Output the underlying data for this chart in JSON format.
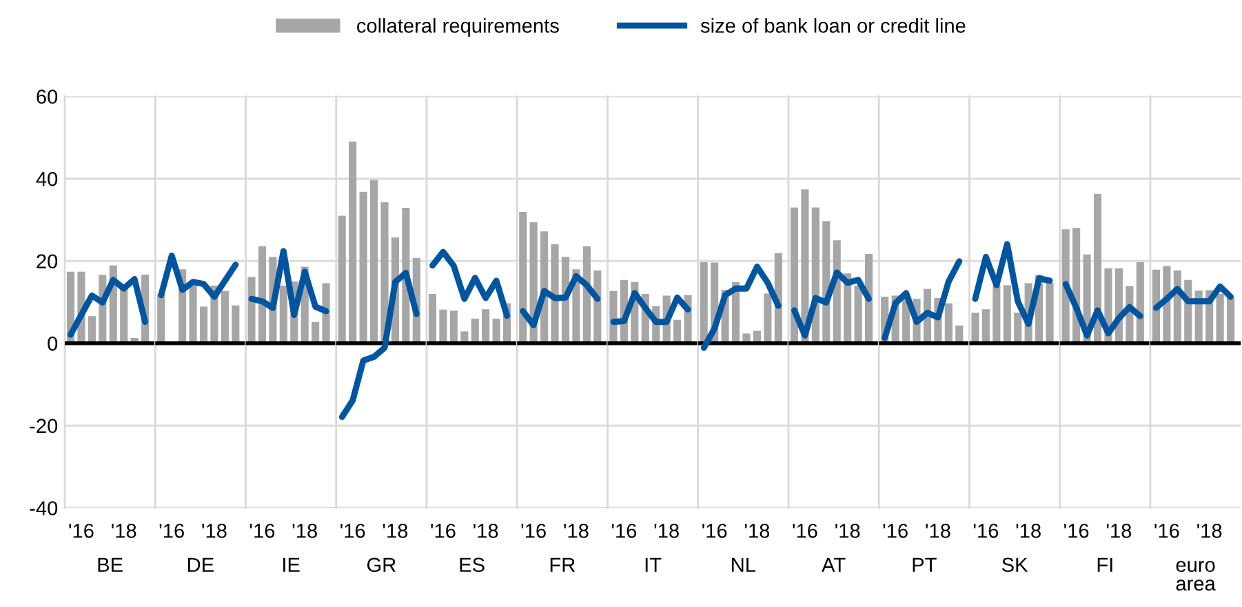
{
  "chart_data": [
    {
      "type": "bar",
      "xlabel": "BE",
      "categories": [
        null,
        "'16",
        null,
        null,
        null,
        "'18",
        null,
        null
      ],
      "ylim": [
        -40,
        60
      ],
      "yticks": [
        -40,
        -20,
        0,
        20,
        40,
        60
      ],
      "grid": "y",
      "legend": "top",
      "ref_lines": [
        {
          "axis": "y",
          "value": 0,
          "color": "#000000"
        }
      ],
      "series": [
        {
          "name": "collateral requirements",
          "color": "#a6a6a6",
          "values": [
            17.4,
            17.4,
            6.6,
            16.6,
            18.9,
            14,
            1.3,
            16.7
          ]
        },
        {
          "name": "size of bank loan or credit line",
          "type": "line",
          "color": "#0055a0",
          "values": [
            2.1,
            6.9,
            11.6,
            9.9,
            15.4,
            13.3,
            15.6,
            5.2
          ]
        }
      ]
    },
    {
      "type": "bar",
      "xlabel": "DE",
      "categories": [
        null,
        "'16",
        null,
        null,
        null,
        "'18",
        null,
        null
      ],
      "ylim": [
        -40,
        60
      ],
      "yticks": [
        -40,
        -20,
        0,
        20,
        40,
        60
      ],
      "grid": "y",
      "tick_labels": "x",
      "ref_lines": [
        {
          "axis": "y",
          "value": 0,
          "color": "#000000"
        }
      ],
      "series": [
        {
          "type": "bar",
          "color": "#a6a6a6",
          "values": [
            12,
            null,
            18,
            14,
            8.9,
            14,
            12.7,
            9.2
          ]
        },
        {
          "type": "line",
          "color": "#0055a0",
          "values": [
            11.7,
            21.3,
            13,
            14.9,
            14.4,
            11.3,
            15.2,
            19.1
          ]
        }
      ]
    },
    {
      "type": "bar",
      "xlabel": "IE",
      "categories": [
        null,
        "'16",
        null,
        null,
        null,
        "'18",
        null,
        null
      ],
      "ylim": [
        -40,
        60
      ],
      "yticks": [
        -40,
        -20,
        0,
        20,
        40,
        60
      ],
      "grid": "y",
      "tick_labels": "x",
      "ref_lines": [
        {
          "axis": "y",
          "value": 0,
          "color": "#000000"
        }
      ],
      "series": [
        {
          "type": "bar",
          "color": "#a6a6a6",
          "values": [
            16.1,
            23.6,
            21,
            14,
            15,
            18.6,
            5.2,
            14.6
          ]
        },
        {
          "type": "line",
          "color": "#0055a0",
          "values": [
            10.8,
            10.2,
            8.6,
            22.4,
            6.9,
            17.4,
            8.9,
            7.8
          ]
        }
      ]
    },
    {
      "type": "bar",
      "xlabel": "GR",
      "categories": [
        null,
        "'16",
        null,
        null,
        null,
        "'18",
        null,
        null
      ],
      "ylim": [
        -40,
        60
      ],
      "yticks": [
        -40,
        -20,
        0,
        20,
        40,
        60
      ],
      "grid": "y",
      "tick_labels": "x",
      "ref_lines": [
        {
          "axis": "y",
          "value": 0,
          "color": "#000000"
        }
      ],
      "series": [
        {
          "type": "bar",
          "color": "#a6a6a6",
          "values": [
            31,
            49,
            36.8,
            39.7,
            34.3,
            25.7,
            32.9,
            20.7
          ]
        },
        {
          "type": "line",
          "color": "#0055a0",
          "values": [
            -17.9,
            -13.9,
            -4.2,
            -3.3,
            -1.1,
            14.9,
            17.1,
            7.1
          ]
        }
      ]
    },
    {
      "type": "bar",
      "xlabel": "ES",
      "categories": [
        null,
        "'16",
        null,
        null,
        null,
        "'18",
        null,
        null
      ],
      "ylim": [
        -40,
        60
      ],
      "yticks": [
        -40,
        -20,
        0,
        20,
        40,
        60
      ],
      "grid": "y",
      "tick_labels": "x",
      "ref_lines": [
        {
          "axis": "y",
          "value": 0,
          "color": "#000000"
        }
      ],
      "series": [
        {
          "type": "bar",
          "color": "#a6a6a6",
          "values": [
            12,
            8.2,
            7.9,
            2.9,
            6,
            8.3,
            6,
            9.7
          ]
        },
        {
          "type": "line",
          "color": "#0055a0",
          "values": [
            18.9,
            22.2,
            18.8,
            10.8,
            15.9,
            11,
            15.2,
            6.7
          ]
        }
      ]
    },
    {
      "type": "bar",
      "xlabel": "FR",
      "categories": [
        null,
        "'16",
        null,
        null,
        null,
        "'18",
        null,
        null
      ],
      "ylim": [
        -40,
        60
      ],
      "yticks": [
        -40,
        -20,
        0,
        20,
        40,
        60
      ],
      "grid": "y",
      "tick_labels": "x",
      "ref_lines": [
        {
          "axis": "y",
          "value": 0,
          "color": "#000000"
        }
      ],
      "series": [
        {
          "type": "bar",
          "color": "#a6a6a6",
          "values": [
            31.9,
            29.4,
            27.2,
            24.1,
            21,
            18,
            23.6,
            17.7
          ]
        },
        {
          "type": "line",
          "color": "#0055a0",
          "values": [
            7.8,
            4.4,
            12.7,
            11,
            11.1,
            16.3,
            14.1,
            10.8
          ]
        }
      ]
    },
    {
      "type": "bar",
      "xlabel": "IT",
      "categories": [
        null,
        "'16",
        null,
        null,
        null,
        "'18",
        null,
        null
      ],
      "ylim": [
        -40,
        60
      ],
      "yticks": [
        -40,
        -20,
        0,
        20,
        40,
        60
      ],
      "grid": "y",
      "tick_labels": "x",
      "ref_lines": [
        {
          "axis": "y",
          "value": 0,
          "color": "#000000"
        }
      ],
      "series": [
        {
          "type": "bar",
          "color": "#a6a6a6",
          "values": [
            12.7,
            15.4,
            14.9,
            12,
            9,
            11.6,
            5.7,
            11.7
          ]
        },
        {
          "type": "line",
          "color": "#0055a0",
          "values": [
            5.2,
            5.4,
            12.2,
            8.6,
            5.2,
            5.2,
            11.1,
            8.2
          ]
        }
      ]
    },
    {
      "type": "bar",
      "xlabel": "NL",
      "categories": [
        null,
        "'16",
        null,
        null,
        null,
        "'18",
        null,
        null
      ],
      "ylim": [
        -40,
        60
      ],
      "yticks": [
        -40,
        -20,
        0,
        20,
        40,
        60
      ],
      "grid": "y",
      "tick_labels": "x",
      "ref_lines": [
        {
          "axis": "y",
          "value": 0,
          "color": "#000000"
        }
      ],
      "series": [
        {
          "type": "bar",
          "color": "#a6a6a6",
          "values": [
            19.7,
            19.6,
            13,
            14.9,
            2.4,
            3,
            12.1,
            21.9
          ]
        },
        {
          "type": "line",
          "color": "#0055a0",
          "values": [
            -1.1,
            3.6,
            11.7,
            13.3,
            13.3,
            18.6,
            14.7,
            9.1
          ]
        }
      ]
    },
    {
      "type": "bar",
      "xlabel": "AT",
      "categories": [
        null,
        "'16",
        null,
        null,
        null,
        "'18",
        null,
        null
      ],
      "ylim": [
        -40,
        60
      ],
      "yticks": [
        -40,
        -20,
        0,
        20,
        40,
        60
      ],
      "grid": "y",
      "tick_labels": "x",
      "ref_lines": [
        {
          "axis": "y",
          "value": 0,
          "color": "#000000"
        }
      ],
      "series": [
        {
          "type": "bar",
          "color": "#a6a6a6",
          "values": [
            33,
            37.4,
            33,
            29.7,
            25,
            17,
            14,
            21.7
          ]
        },
        {
          "type": "line",
          "color": "#0055a0",
          "values": [
            8,
            1.9,
            11,
            9.9,
            17.2,
            14.7,
            15.4,
            10.8
          ]
        }
      ]
    },
    {
      "type": "bar",
      "xlabel": "PT",
      "categories": [
        null,
        "'16",
        null,
        null,
        null,
        "'18",
        null,
        null
      ],
      "ylim": [
        -40,
        60
      ],
      "yticks": [
        -40,
        -20,
        0,
        20,
        40,
        60
      ],
      "grid": "y",
      "tick_labels": "x",
      "ref_lines": [
        {
          "axis": "y",
          "value": 0,
          "color": "#000000"
        }
      ],
      "series": [
        {
          "type": "bar",
          "color": "#a6a6a6",
          "values": [
            11.3,
            11.6,
            12,
            10.8,
            13.2,
            11,
            9.7,
            4.3
          ]
        },
        {
          "type": "line",
          "color": "#0055a0",
          "values": [
            1.3,
            9.7,
            12.2,
            5.2,
            7.4,
            6.3,
            15,
            19.9
          ]
        }
      ]
    },
    {
      "type": "bar",
      "xlabel": "SK",
      "categories": [
        null,
        "'16",
        null,
        null,
        null,
        "'18",
        null,
        null
      ],
      "ylim": [
        -40,
        60
      ],
      "yticks": [
        -40,
        -20,
        0,
        20,
        40,
        60
      ],
      "grid": "y",
      "tick_labels": "x",
      "ref_lines": [
        {
          "axis": "y",
          "value": 0,
          "color": "#000000"
        }
      ],
      "series": [
        {
          "type": "bar",
          "color": "#a6a6a6",
          "values": [
            7.4,
            8.3,
            14.1,
            14.1,
            7.4,
            14.6,
            16.6,
            14.7
          ]
        },
        {
          "type": "line",
          "color": "#0055a0",
          "values": [
            10.8,
            21,
            14.1,
            24.1,
            10.2,
            4.7,
            15.8,
            15.2
          ]
        }
      ]
    },
    {
      "type": "bar",
      "xlabel": "FI",
      "categories": [
        null,
        "'16",
        null,
        null,
        null,
        "'18",
        null,
        null
      ],
      "ylim": [
        -40,
        60
      ],
      "yticks": [
        -40,
        -20,
        0,
        20,
        40,
        60
      ],
      "grid": "y",
      "tick_labels": "x",
      "ref_lines": [
        {
          "axis": "y",
          "value": 0,
          "color": "#000000"
        }
      ],
      "series": [
        {
          "type": "bar",
          "color": "#a6a6a6",
          "values": [
            27.7,
            28,
            21.6,
            36.3,
            18.2,
            18.2,
            13.9,
            19.7
          ]
        },
        {
          "type": "line",
          "color": "#0055a0",
          "values": [
            14.4,
            8.6,
            1.9,
            8,
            2.4,
            6.1,
            8.8,
            6.6
          ]
        }
      ]
    },
    {
      "type": "bar",
      "xlabel": "euro area",
      "categories": [
        null,
        "'16",
        null,
        null,
        null,
        "'18",
        null,
        null
      ],
      "ylim": [
        -40,
        60
      ],
      "yticks": [
        -40,
        -20,
        0,
        20,
        40,
        60
      ],
      "grid": "y",
      "tick_labels": "x",
      "ref_lines": [
        {
          "axis": "y",
          "value": 0,
          "color": "#000000"
        }
      ],
      "series": [
        {
          "type": "bar",
          "color": "#a6a6a6",
          "values": [
            17.9,
            18.8,
            17.7,
            15.4,
            12.8,
            12.9,
            12,
            11
          ]
        },
        {
          "type": "line",
          "color": "#0055a0",
          "values": [
            8.6,
            10.8,
            13.2,
            10.2,
            10.2,
            10.2,
            13.8,
            11.3
          ]
        }
      ]
    }
  ]
}
